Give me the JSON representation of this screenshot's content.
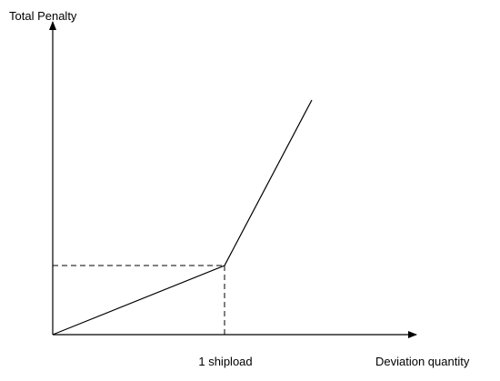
{
  "axes": {
    "y_label": "Total Penalty",
    "x_label": "Deviation quantity"
  },
  "breakpoint_label": "1 shipload"
}
